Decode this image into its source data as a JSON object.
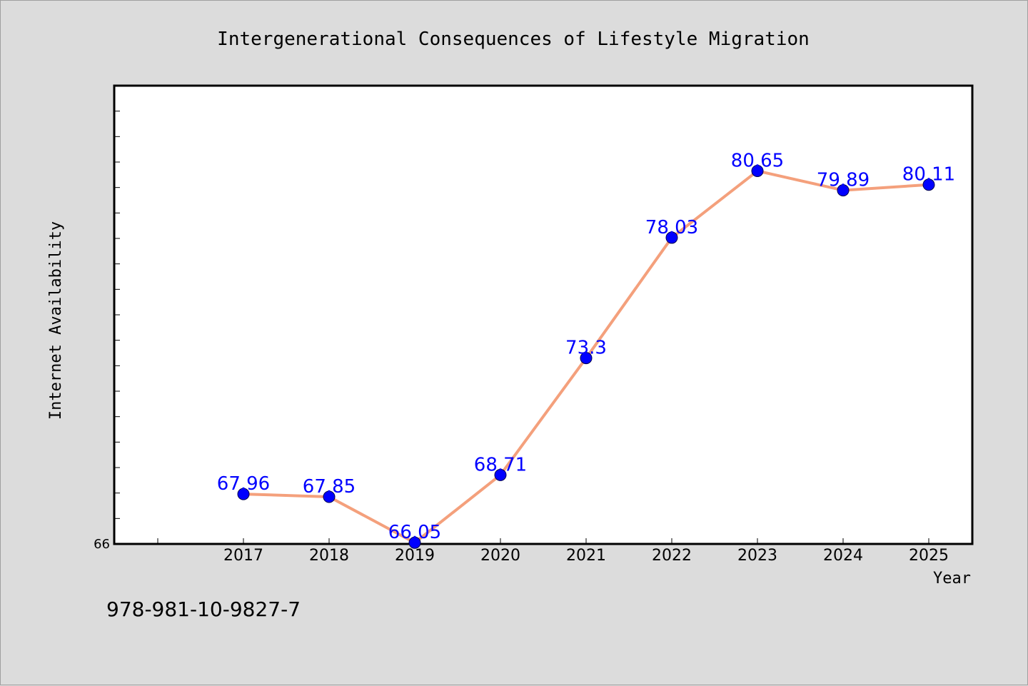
{
  "chart_data": {
    "type": "line",
    "title": "Intergenerational Consequences of Lifestyle Migration",
    "xlabel": "Year",
    "ylabel": "Internet Availability",
    "categories": [
      "2017",
      "2018",
      "2019",
      "2020",
      "2021",
      "2022",
      "2023",
      "2024",
      "2025"
    ],
    "series": [
      {
        "values": [
          67.96,
          67.85,
          66.05,
          68.71,
          73.3,
          78.03,
          80.65,
          79.89,
          80.11
        ],
        "data_labels": [
          "67.96",
          "67.85",
          "66.05",
          "68.71",
          "73.3",
          "78.03",
          "80.65",
          "79.89",
          "80.11"
        ]
      }
    ],
    "ylim": [
      66,
      84
    ],
    "ytick_labels": [
      "66"
    ],
    "grid": false,
    "legend": "none",
    "colors": {
      "line": "#f4a07c",
      "marker": "#0000ff",
      "data_label": "#0000ff",
      "background": "#dcdcdc",
      "plot_background": "#ffffff"
    }
  },
  "footer": {
    "isbn": "978-981-10-9827-7"
  }
}
